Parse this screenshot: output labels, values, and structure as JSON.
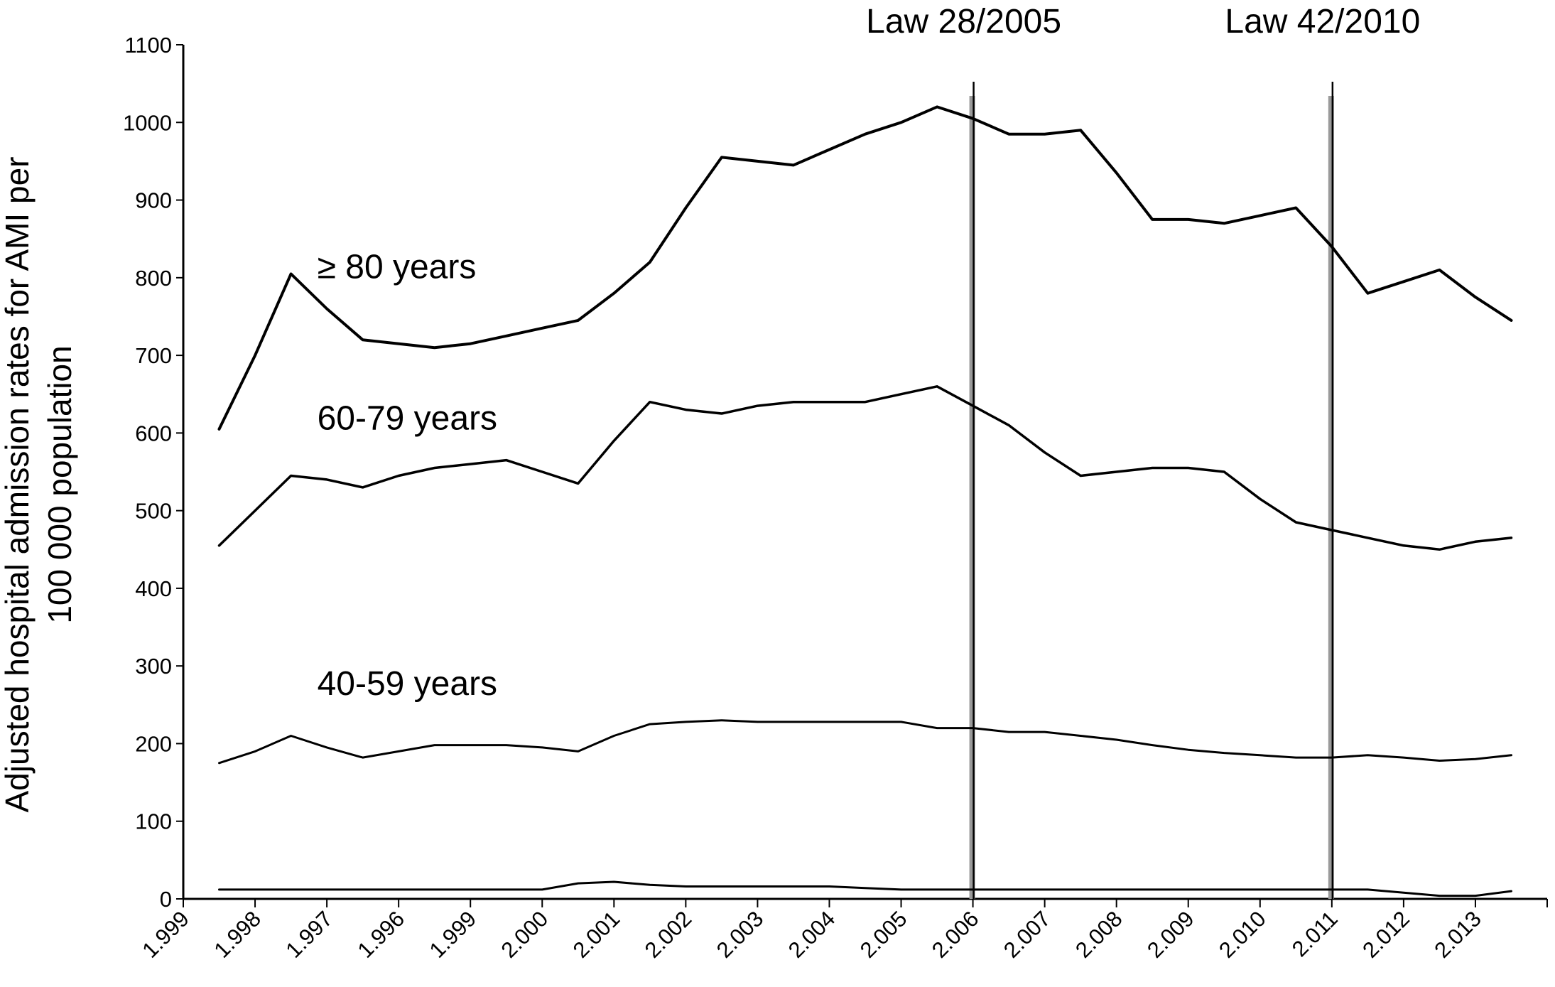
{
  "chart_data": {
    "type": "line",
    "title": "",
    "xlabel": "",
    "ylabel_lines": [
      "Adjusted hospital admission rates for AMI per",
      "100 000 population"
    ],
    "ylim": [
      0,
      1100
    ],
    "yticks": [
      0,
      100,
      200,
      300,
      400,
      500,
      600,
      700,
      800,
      900,
      1000,
      1100
    ],
    "x_tick_labels": [
      "1.999",
      "1.998",
      "1.997",
      "1.996",
      "1.999",
      "2.000",
      "2.001",
      "2.002",
      "2.003",
      "2.004",
      "2.005",
      "2.006",
      "2.007",
      "2.008",
      "2.009",
      "2.010",
      "2.011",
      "2.012",
      "2.013"
    ],
    "grid": false,
    "series": [
      {
        "name": "≥ 80 years",
        "x": [
          0.5,
          1.0,
          1.5,
          2.0,
          2.5,
          3.0,
          3.5,
          4.0,
          4.5,
          5.0,
          5.5,
          6.0,
          6.5,
          7.0,
          7.5,
          8.0,
          8.5,
          9.0,
          9.5,
          10.0,
          10.5,
          11.0,
          11.5,
          12.0,
          12.5,
          13.0,
          13.5,
          14.0,
          14.5,
          15.0,
          15.5,
          16.0,
          16.5,
          17.0,
          17.5,
          18.0,
          18.5
        ],
        "values": [
          605,
          700,
          805,
          760,
          720,
          715,
          710,
          715,
          725,
          735,
          745,
          780,
          820,
          890,
          955,
          950,
          945,
          965,
          985,
          1000,
          1020,
          1005,
          985,
          985,
          990,
          935,
          875,
          875,
          870,
          880,
          890,
          840,
          780,
          795,
          810,
          775,
          745
        ]
      },
      {
        "name": "60-79 years",
        "x": [
          0.5,
          1.0,
          1.5,
          2.0,
          2.5,
          3.0,
          3.5,
          4.0,
          4.5,
          5.0,
          5.5,
          6.0,
          6.5,
          7.0,
          7.5,
          8.0,
          8.5,
          9.0,
          9.5,
          10.0,
          10.5,
          11.0,
          11.5,
          12.0,
          12.5,
          13.0,
          13.5,
          14.0,
          14.5,
          15.0,
          15.5,
          16.0,
          16.5,
          17.0,
          17.5,
          18.0,
          18.5
        ],
        "values": [
          455,
          500,
          545,
          540,
          530,
          545,
          555,
          560,
          565,
          550,
          535,
          590,
          640,
          630,
          625,
          635,
          640,
          640,
          640,
          650,
          660,
          635,
          610,
          575,
          545,
          550,
          555,
          555,
          550,
          515,
          485,
          475,
          465,
          455,
          450,
          460,
          465
        ]
      },
      {
        "name": "40-59 years",
        "x": [
          0.5,
          1.0,
          1.5,
          2.0,
          2.5,
          3.0,
          3.5,
          4.0,
          4.5,
          5.0,
          5.5,
          6.0,
          6.5,
          7.0,
          7.5,
          8.0,
          8.5,
          9.0,
          9.5,
          10.0,
          10.5,
          11.0,
          11.5,
          12.0,
          12.5,
          13.0,
          13.5,
          14.0,
          14.5,
          15.0,
          15.5,
          16.0,
          16.5,
          17.0,
          17.5,
          18.0,
          18.5
        ],
        "values": [
          175,
          190,
          210,
          195,
          182,
          190,
          198,
          198,
          198,
          195,
          190,
          210,
          225,
          228,
          230,
          228,
          228,
          228,
          228,
          228,
          220,
          220,
          215,
          215,
          210,
          205,
          198,
          192,
          188,
          185,
          182,
          182,
          185,
          182,
          178,
          180,
          185
        ]
      },
      {
        "name": "",
        "x": [
          0.5,
          1.0,
          1.5,
          2.0,
          2.5,
          3.0,
          3.5,
          4.0,
          4.5,
          5.0,
          5.5,
          6.0,
          6.5,
          7.0,
          7.5,
          8.0,
          8.5,
          9.0,
          9.5,
          10.0,
          10.5,
          11.0,
          11.5,
          12.0,
          12.5,
          13.0,
          13.5,
          14.0,
          14.5,
          15.0,
          15.5,
          16.0,
          16.5,
          17.0,
          17.5,
          18.0,
          18.5
        ],
        "values": [
          12,
          12,
          12,
          12,
          12,
          12,
          12,
          12,
          12,
          12,
          20,
          22,
          18,
          16,
          16,
          16,
          16,
          16,
          14,
          12,
          12,
          12,
          12,
          12,
          12,
          12,
          12,
          12,
          12,
          12,
          12,
          12,
          12,
          8,
          4,
          4,
          10
        ]
      }
    ],
    "series_labels": [
      {
        "text": "≥ 80 years",
        "x": 1.5,
        "y": 815
      },
      {
        "text": "60-79 years",
        "x": 1.5,
        "y": 620
      },
      {
        "text": "40-59 years",
        "x": 1.5,
        "y": 278
      }
    ],
    "annotations": [
      {
        "text": "Law 28/2005",
        "x": 11.0
      },
      {
        "text": "Law 42/2010",
        "x": 16.0
      }
    ],
    "x_axis": {
      "min": 0,
      "max": 19
    },
    "colors": {
      "line": "#000000",
      "annotation_line": "#000000",
      "annotation_shadow": "#9a9a9a"
    }
  }
}
